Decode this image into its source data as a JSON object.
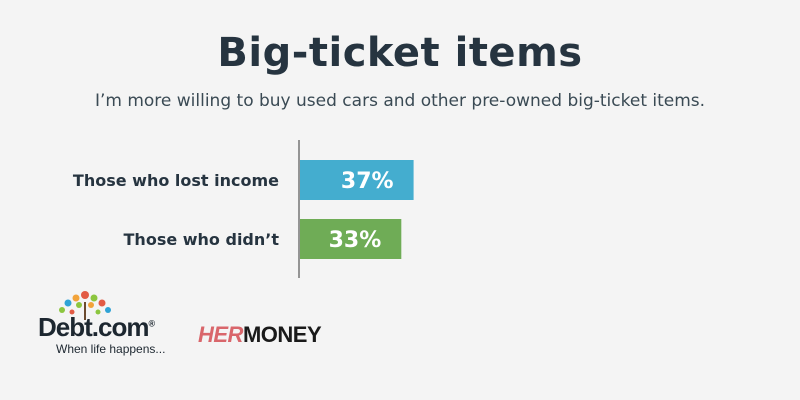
{
  "header": {
    "title": "Big-ticket items",
    "subtitle": "I’m more willing to buy used cars and other pre-owned big-ticket items."
  },
  "chart_data": {
    "type": "bar",
    "orientation": "horizontal",
    "categories": [
      "Those who lost income",
      "Those who didn’t"
    ],
    "values": [
      37,
      33
    ],
    "value_labels": [
      "37%",
      "33%"
    ],
    "colors": [
      "#44adcf",
      "#6fac56"
    ],
    "xlim": [
      0,
      100
    ],
    "grid": false
  },
  "logos": {
    "debt": {
      "wordmark": "Debt.com",
      "registered": "®",
      "tagline": "When life happens..."
    },
    "hermoney": {
      "her": "HER",
      "money": "MONEY"
    }
  }
}
